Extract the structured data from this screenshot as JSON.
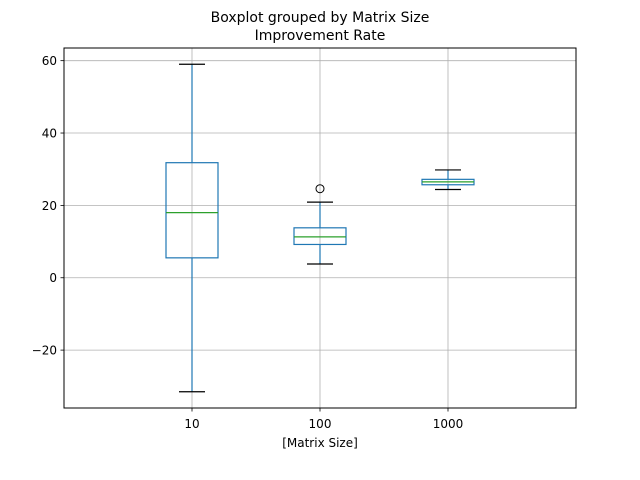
{
  "chart_data": {
    "type": "boxplot",
    "title": "Boxplot grouped by Matrix Size",
    "subtitle": "Improvement Rate",
    "xlabel": "[Matrix Size]",
    "ylabel": "",
    "ylim": [
      -36,
      63.5
    ],
    "yticks": [
      -20,
      0,
      20,
      40,
      60
    ],
    "grid": true,
    "categories": [
      "10",
      "100",
      "1000"
    ],
    "boxes": [
      {
        "category": "10",
        "whisker_low": -31.5,
        "q1": 5.5,
        "median": 18.0,
        "q3": 31.8,
        "whisker_high": 59.0,
        "outliers": []
      },
      {
        "category": "100",
        "whisker_low": 3.8,
        "q1": 9.2,
        "median": 11.3,
        "q3": 13.8,
        "whisker_high": 20.9,
        "outliers": [
          24.6
        ]
      },
      {
        "category": "1000",
        "whisker_low": 24.4,
        "q1": 25.7,
        "median": 26.5,
        "q3": 27.2,
        "whisker_high": 29.8,
        "outliers": []
      }
    ],
    "colors": {
      "box": "#1f77b4",
      "median": "#2ca02c",
      "cap": "#000000",
      "outlier": "#000000",
      "grid": "#b0b0b0",
      "axes": "#000000"
    }
  }
}
